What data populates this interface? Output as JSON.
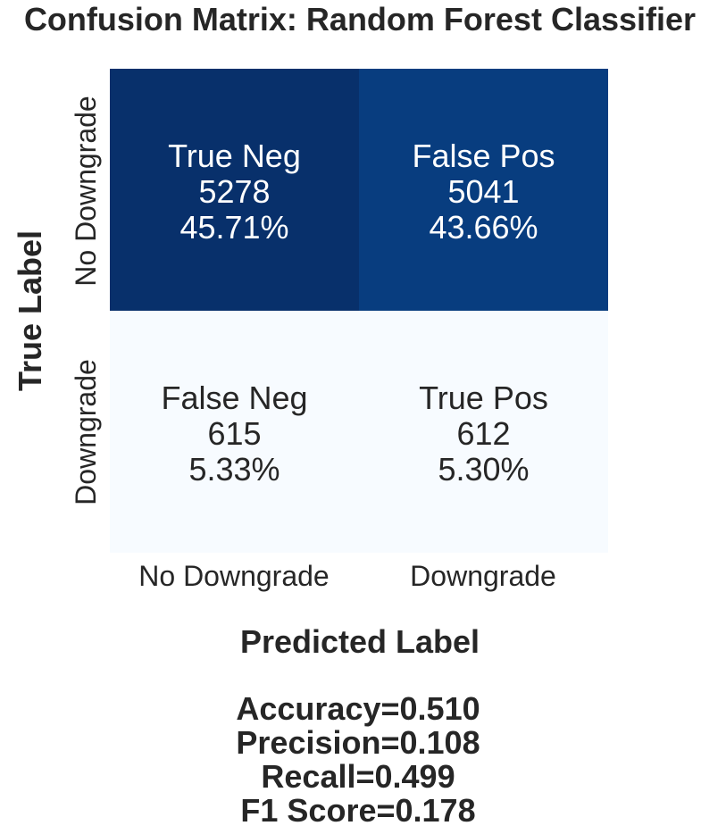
{
  "chart_data": {
    "type": "heatmap",
    "title": "Confusion Matrix: Random Forest Classifier",
    "xlabel": "Predicted Label",
    "ylabel": "True Label",
    "x_categories": [
      "No Downgrade",
      "Downgrade"
    ],
    "y_categories": [
      "No Downgrade",
      "Downgrade"
    ],
    "values": [
      [
        5278,
        5041
      ],
      [
        615,
        612
      ]
    ],
    "cells": [
      [
        {
          "name": "True Neg",
          "count": "5278",
          "percent": "45.71%"
        },
        {
          "name": "False Pos",
          "count": "5041",
          "percent": "43.66%"
        }
      ],
      [
        {
          "name": "False Neg",
          "count": "615",
          "percent": "5.33%"
        },
        {
          "name": "True Pos",
          "count": "612",
          "percent": "5.30%"
        }
      ]
    ],
    "colormap": "Blues",
    "color_low": "#f7fbff",
    "color_high": "#08306b",
    "text_color_dark": "#ffffff",
    "text_color_light": "#262626",
    "colorbar": false,
    "metrics": [
      "Accuracy=0.510",
      "Precision=0.108",
      "Recall=0.499",
      "F1 Score=0.178"
    ]
  }
}
